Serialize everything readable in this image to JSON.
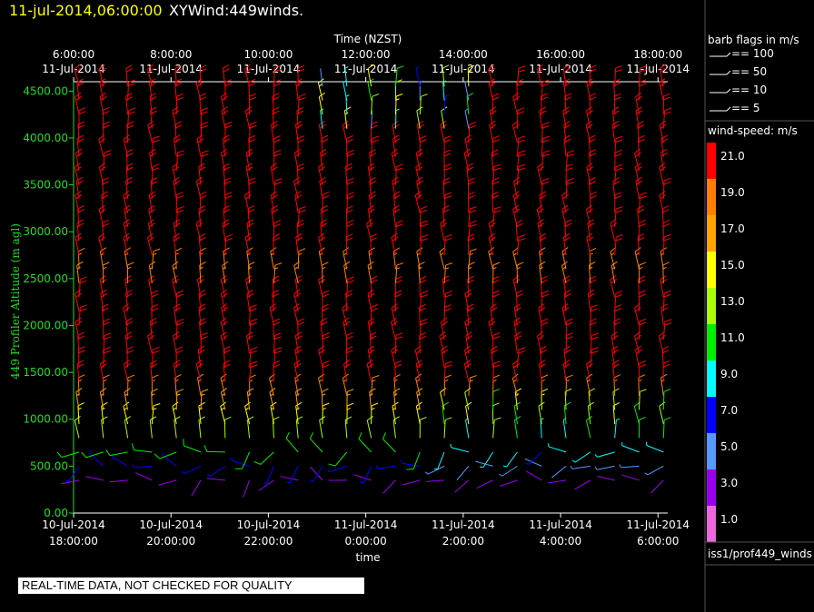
{
  "header": {
    "datetime": "11-jul-2014,06:00:00",
    "title": "XYWind:449winds."
  },
  "colors": {
    "axis_left": "#22dd22",
    "frame": "#ffffff",
    "background": "#000000"
  },
  "chart_data": {
    "type": "wind-barb-profile",
    "top_axis": {
      "label": "Time (NZST)",
      "ticks": [
        {
          "t": 0,
          "time": "6:00:00",
          "date": "11-Jul-2014"
        },
        {
          "t": 2,
          "time": "8:00:00",
          "date": "11-Jul-2014"
        },
        {
          "t": 4,
          "time": "10:00:00",
          "date": "11-Jul-2014"
        },
        {
          "t": 6,
          "time": "12:00:00",
          "date": "11-Jul-2014"
        },
        {
          "t": 8,
          "time": "14:00:00",
          "date": "11-Jul-2014"
        },
        {
          "t": 10,
          "time": "16:00:00",
          "date": "11-Jul-2014"
        },
        {
          "t": 12,
          "time": "18:00:00",
          "date": "11-Jul-2014"
        }
      ]
    },
    "bottom_axis": {
      "label": "time",
      "ticks": [
        {
          "t": 0,
          "date": "10-Jul-2014",
          "time": "18:00:00"
        },
        {
          "t": 2,
          "date": "10-Jul-2014",
          "time": "20:00:00"
        },
        {
          "t": 4,
          "date": "10-Jul-2014",
          "time": "22:00:00"
        },
        {
          "t": 6,
          "date": "11-Jul-2014",
          "time": "0:00:00"
        },
        {
          "t": 8,
          "date": "11-Jul-2014",
          "time": "2:00:00"
        },
        {
          "t": 10,
          "date": "11-Jul-2014",
          "time": "4:00:00"
        },
        {
          "t": 12,
          "date": "11-Jul-2014",
          "time": "6:00:00"
        }
      ]
    },
    "xlim": [
      0,
      12.2
    ],
    "y_axis": {
      "label": "449 Profiler Altitude (m agl)",
      "ylim": [
        0,
        4600
      ],
      "ticks": [
        "0.00",
        "500.00",
        "1000.00",
        "1500.00",
        "2000.00",
        "2500.00",
        "3000.00",
        "3500.00",
        "4000.00",
        "4500.00"
      ],
      "tick_values": [
        0,
        500,
        1000,
        1500,
        2000,
        2500,
        3000,
        3500,
        4000,
        4500
      ]
    },
    "profile_times": [
      0,
      0.5,
      1,
      1.5,
      2,
      2.5,
      3,
      3.5,
      4,
      4.5,
      5,
      5.5,
      6,
      6.5,
      7,
      7.5,
      8,
      8.5,
      9,
      9.5,
      10,
      10.5,
      11,
      11.5,
      12
    ],
    "levels_m": [
      350,
      500,
      650,
      800,
      950,
      1100,
      1250,
      1400,
      1550,
      1700,
      1850,
      2000,
      2150,
      2300,
      2450,
      2600,
      2750,
      2900,
      3050,
      3200,
      3350,
      3500,
      3650,
      3800,
      3950,
      4100,
      4250,
      4400,
      4550
    ],
    "speed_profile_ms": [
      3,
      6,
      10,
      13,
      15,
      16,
      18,
      20,
      21,
      21,
      21,
      21,
      21,
      21,
      19,
      19,
      21,
      21,
      21,
      21,
      21,
      21,
      21,
      21,
      21,
      21,
      21,
      21,
      21
    ],
    "barb_legend": {
      "title": "barb flags in m/s",
      "items": [
        "== 100",
        "== 50",
        "== 10",
        "== 5"
      ]
    },
    "speed_legend": {
      "title": "wind-speed: m/s",
      "entries": [
        {
          "label": "21.0",
          "color": "#ff0000"
        },
        {
          "label": "19.0",
          "color": "#ff8000"
        },
        {
          "label": "17.0",
          "color": "#ffa500"
        },
        {
          "label": "15.0",
          "color": "#ffff00"
        },
        {
          "label": "13.0",
          "color": "#aaff00"
        },
        {
          "label": "11.0",
          "color": "#00ee00"
        },
        {
          "label": "9.0",
          "color": "#00ffff"
        },
        {
          "label": "7.0",
          "color": "#0000ff"
        },
        {
          "label": "5.0",
          "color": "#5599ff"
        },
        {
          "label": "3.0",
          "color": "#9900ee"
        },
        {
          "label": "1.0",
          "color": "#ee66dd"
        }
      ]
    },
    "source": "iss1/prof449_winds"
  },
  "footer": {
    "quality_note": "REAL-TIME DATA, NOT CHECKED FOR QUALITY"
  }
}
